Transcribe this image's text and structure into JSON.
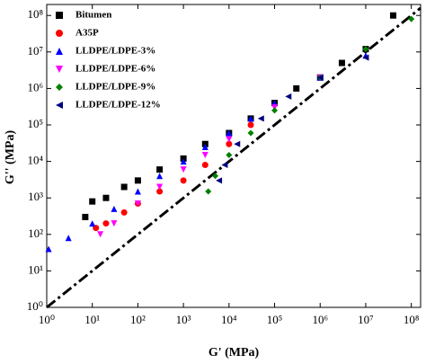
{
  "chart_data": {
    "type": "scatter",
    "x_label": "G' (MPa)",
    "y_label": "G'' (MPa)",
    "xscale": "log",
    "yscale": "log",
    "xlim": [
      1,
      160000000
    ],
    "ylim": [
      1,
      200000000
    ],
    "xticks": [
      {
        "value": 1,
        "label": "10⁰"
      },
      {
        "value": 10,
        "label": "10¹"
      },
      {
        "value": 100,
        "label": "10²"
      },
      {
        "value": 1000,
        "label": "10³"
      },
      {
        "value": 10000,
        "label": "10⁴"
      },
      {
        "value": 100000,
        "label": "10⁵"
      },
      {
        "value": 1000000,
        "label": "10⁶"
      },
      {
        "value": 10000000,
        "label": "10⁷"
      },
      {
        "value": 100000000,
        "label": "10⁸"
      }
    ],
    "yticks": [
      {
        "value": 1,
        "label": "10⁰"
      },
      {
        "value": 10,
        "label": "10¹"
      },
      {
        "value": 100,
        "label": "10²"
      },
      {
        "value": 1000,
        "label": "10³"
      },
      {
        "value": 10000,
        "label": "10⁴"
      },
      {
        "value": 100000,
        "label": "10⁵"
      },
      {
        "value": 1000000,
        "label": "10⁶"
      },
      {
        "value": 10000000,
        "label": "10⁷"
      },
      {
        "value": 100000000,
        "label": "10⁸"
      }
    ],
    "reference_line": "y=x",
    "series": [
      {
        "name": "Bitumen",
        "color": "#000000",
        "marker": "square",
        "x": [
          7,
          10,
          20,
          50,
          100,
          300,
          1000,
          3000,
          10000,
          30000,
          100000,
          300000,
          1000000,
          3000000,
          10000000,
          40000000
        ],
        "values": [
          300,
          800,
          1000,
          2000,
          3000,
          6000,
          12000,
          30000,
          60000,
          150000,
          400000,
          1000000,
          2000000,
          5000000,
          12000000,
          100000000
        ]
      },
      {
        "name": "A35P",
        "color": "#ff0000",
        "marker": "circle",
        "x": [
          12,
          20,
          50,
          100,
          300,
          1000,
          3000,
          10000,
          30000
        ],
        "values": [
          150,
          200,
          400,
          700,
          1500,
          3000,
          8000,
          30000,
          100000
        ]
      },
      {
        "name": "LLDPE/LDPE-3%",
        "color": "#0000ff",
        "marker": "triangle-up",
        "x": [
          1.1,
          3,
          10,
          30,
          100,
          300,
          1000,
          3000,
          10000,
          30000,
          100000,
          1000000,
          10000000
        ],
        "values": [
          40,
          80,
          200,
          500,
          1500,
          4000,
          10000,
          25000,
          60000,
          150000,
          400000,
          2000000,
          8000000
        ]
      },
      {
        "name": "LLDPE/LDPE-6%",
        "color": "#ff00ff",
        "marker": "triangle-down",
        "x": [
          15,
          30,
          100,
          300,
          1000,
          3000,
          10000,
          100000,
          1000000
        ],
        "values": [
          100,
          200,
          700,
          2000,
          6000,
          15000,
          40000,
          300000,
          2000000
        ]
      },
      {
        "name": "LLDPE/LDPE-9%",
        "color": "#008000",
        "marker": "diamond",
        "x": [
          3500,
          5000,
          10000,
          30000,
          100000,
          1000000,
          10000000,
          100000000
        ],
        "values": [
          1500,
          4000,
          15000,
          60000,
          250000,
          2000000,
          12000000,
          80000000
        ]
      },
      {
        "name": "LLDPE/LDPE-12%",
        "color": "#000080",
        "marker": "triangle-left",
        "x": [
          6000,
          8000,
          15000,
          50000,
          200000,
          1000000,
          10000000
        ],
        "values": [
          3000,
          8000,
          30000,
          150000,
          600000,
          2000000,
          7000000
        ]
      }
    ]
  }
}
